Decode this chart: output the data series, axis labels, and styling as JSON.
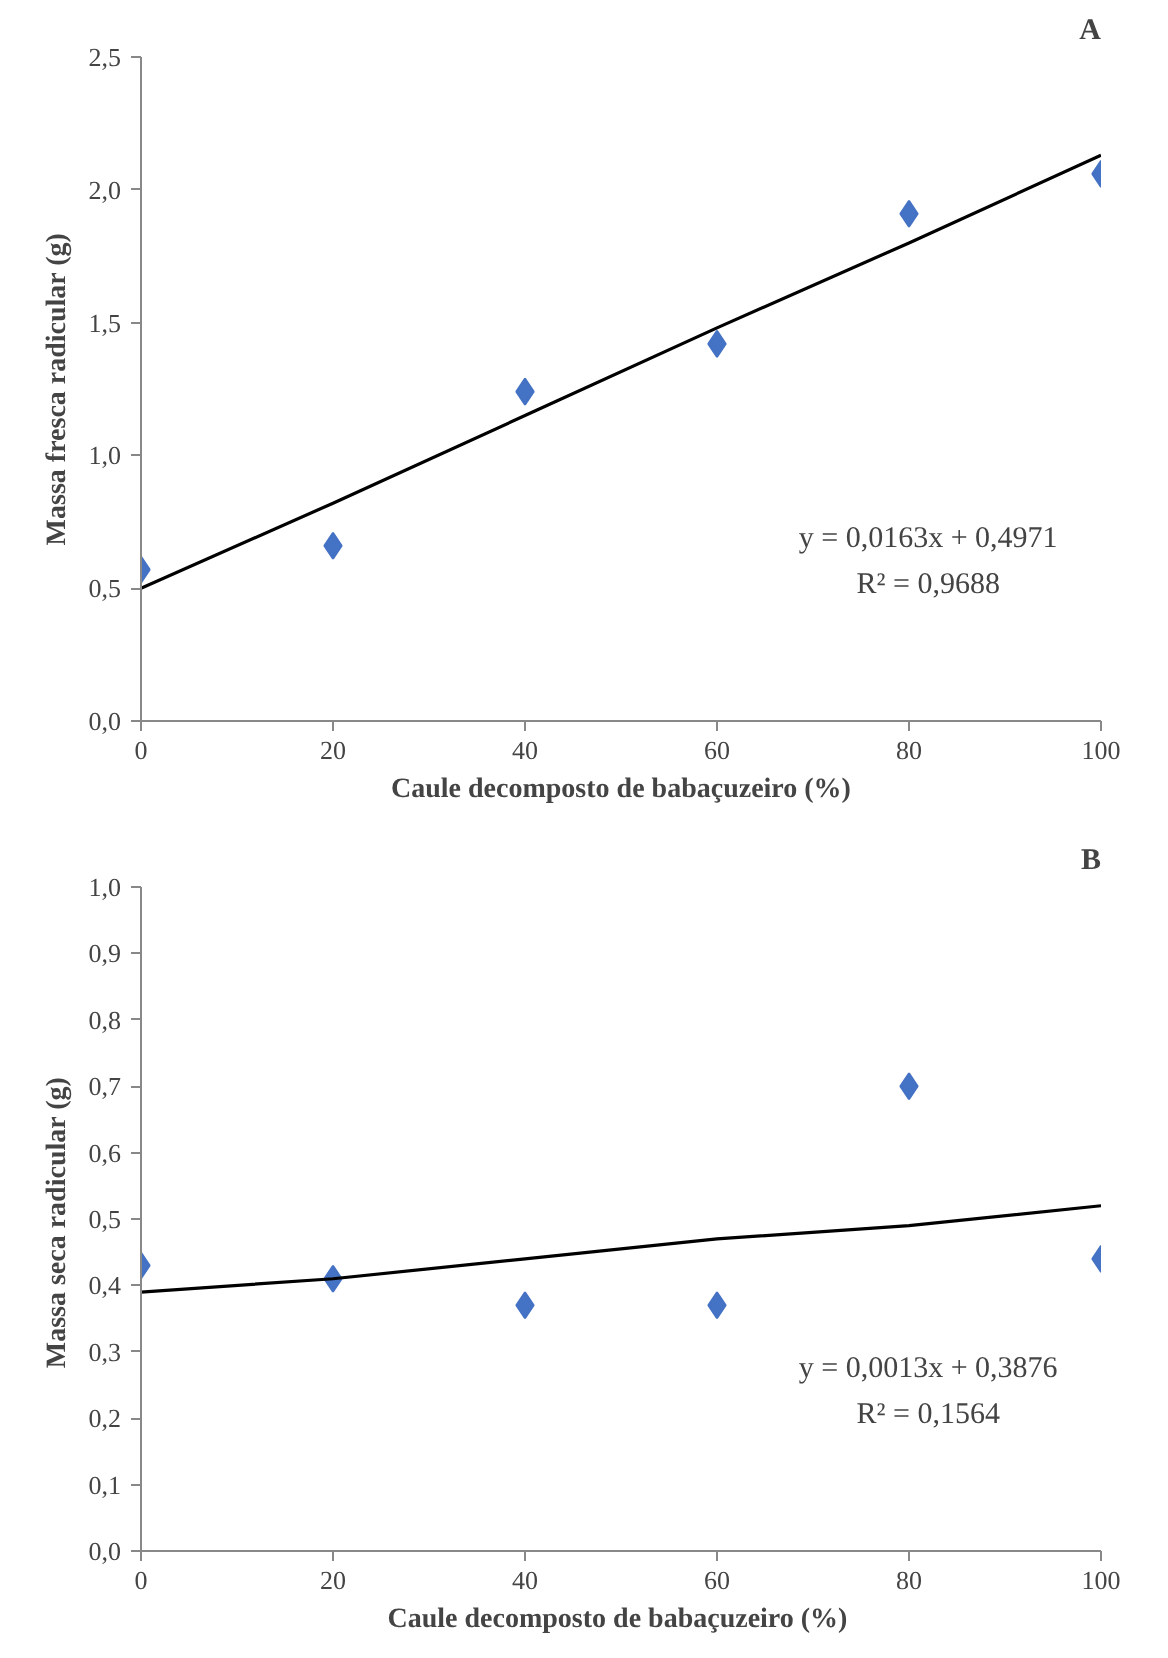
{
  "chart_data": [
    {
      "type": "scatter",
      "title": "A",
      "xlabel": "Caule decomposto de babaçuzeiro (%)",
      "ylabel": "Massa fresca radicular (g)",
      "annotations": [
        "y = 0,0163x + 0,4971",
        "R² = 0,9688"
      ],
      "xlim": [
        0,
        100
      ],
      "ylim": [
        0,
        2.5
      ],
      "xticks": [
        0,
        20,
        40,
        60,
        80,
        100
      ],
      "yticks": [
        {
          "value": 0,
          "label": "0,0"
        },
        {
          "value": 0.5,
          "label": "0,5"
        },
        {
          "value": 1,
          "label": "1,0"
        },
        {
          "value": 1.5,
          "label": "1,5"
        },
        {
          "value": 2,
          "label": "2,0"
        },
        {
          "value": 2.5,
          "label": "2,5"
        }
      ],
      "x": [
        0,
        20,
        40,
        60,
        80,
        100
      ],
      "series": [
        {
          "color": "#4472c4",
          "marker": "diamond",
          "values": [
            0.57,
            0.66,
            1.24,
            1.42,
            1.91,
            2.06
          ]
        },
        {
          "type": "line",
          "color": "#000000",
          "values": [
            0.5,
            0.82,
            1.15,
            1.48,
            1.8,
            2.13
          ]
        }
      ]
    },
    {
      "type": "scatter",
      "title": "B",
      "xlabel": "Caule decomposto  de babaçuzeiro (%)",
      "ylabel": "Massa seca  radicular (g)",
      "annotations": [
        "y = 0,0013x + 0,3876",
        "R² = 0,1564"
      ],
      "xlim": [
        0,
        100
      ],
      "ylim": [
        0,
        1
      ],
      "xticks": [
        0,
        20,
        40,
        60,
        80,
        100
      ],
      "yticks": [
        {
          "value": 0,
          "label": "0,0"
        },
        {
          "value": 0.1,
          "label": "0,1"
        },
        {
          "value": 0.2,
          "label": "0,2"
        },
        {
          "value": 0.3,
          "label": "0,3"
        },
        {
          "value": 0.4,
          "label": "0,4"
        },
        {
          "value": 0.5,
          "label": "0,5"
        },
        {
          "value": 0.6,
          "label": "0,6"
        },
        {
          "value": 0.7,
          "label": "0,7"
        },
        {
          "value": 0.8,
          "label": "0,8"
        },
        {
          "value": 0.9,
          "label": "0,9"
        },
        {
          "value": 1,
          "label": "1,0"
        }
      ],
      "x": [
        0,
        20,
        40,
        60,
        80,
        100
      ],
      "series": [
        {
          "color": "#4472c4",
          "marker": "diamond",
          "values": [
            0.43,
            0.41,
            0.37,
            0.37,
            0.7,
            0.44
          ]
        },
        {
          "type": "line",
          "color": "#000000",
          "values": [
            0.39,
            0.41,
            0.44,
            0.47,
            0.49,
            0.52
          ]
        }
      ]
    }
  ]
}
